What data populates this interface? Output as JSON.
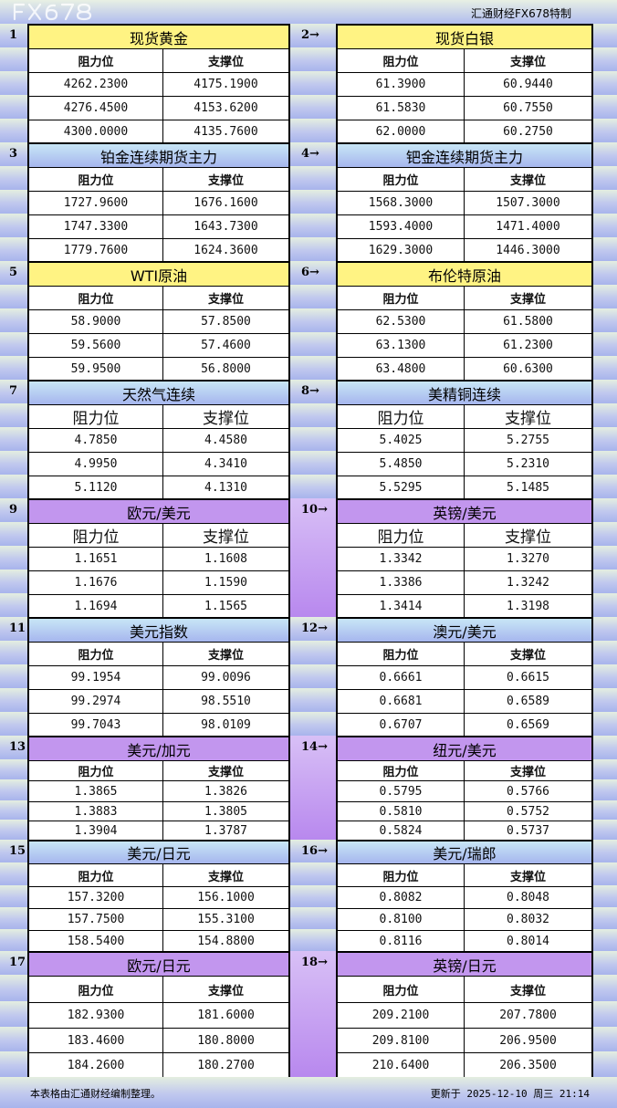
{
  "brand": "汇通财经FX678特制",
  "col_headers": {
    "resistance": "阻力位",
    "support": "支撑位"
  },
  "instruments": [
    {
      "num": "1",
      "name": "现货黄金",
      "rows": [
        [
          "4262.2300",
          "4175.1900"
        ],
        [
          "4276.4500",
          "4153.6200"
        ],
        [
          "4300.0000",
          "4135.7600"
        ]
      ]
    },
    {
      "num": "2→",
      "name": "现货白银",
      "rows": [
        [
          "61.3900",
          "60.9440"
        ],
        [
          "61.5830",
          "60.7550"
        ],
        [
          "62.0000",
          "60.2750"
        ]
      ]
    },
    {
      "num": "3",
      "name": "铂金连续期货主力",
      "rows": [
        [
          "1727.9600",
          "1676.1600"
        ],
        [
          "1747.3300",
          "1643.7300"
        ],
        [
          "1779.7600",
          "1624.3600"
        ]
      ]
    },
    {
      "num": "4→",
      "name": "钯金连续期货主力",
      "rows": [
        [
          "1568.3000",
          "1507.3000"
        ],
        [
          "1593.4000",
          "1471.4000"
        ],
        [
          "1629.3000",
          "1446.3000"
        ]
      ]
    },
    {
      "num": "5",
      "name": "WTI原油",
      "rows": [
        [
          "58.9000",
          "57.8500"
        ],
        [
          "59.5600",
          "57.4600"
        ],
        [
          "59.9500",
          "56.8000"
        ]
      ]
    },
    {
      "num": "6→",
      "name": "布伦特原油",
      "rows": [
        [
          "62.5300",
          "61.5800"
        ],
        [
          "63.1300",
          "61.2300"
        ],
        [
          "63.4800",
          "60.6300"
        ]
      ]
    },
    {
      "num": "7",
      "name": "天然气连续",
      "rows": [
        [
          "4.7850",
          "4.4580"
        ],
        [
          "4.9950",
          "4.3410"
        ],
        [
          "5.1120",
          "4.1310"
        ]
      ]
    },
    {
      "num": "8→",
      "name": "美精铜连续",
      "rows": [
        [
          "5.4025",
          "5.2755"
        ],
        [
          "5.4850",
          "5.2310"
        ],
        [
          "5.5295",
          "5.1485"
        ]
      ]
    },
    {
      "num": "9",
      "name": "欧元/美元",
      "rows": [
        [
          "1.1651",
          "1.1608"
        ],
        [
          "1.1676",
          "1.1590"
        ],
        [
          "1.1694",
          "1.1565"
        ]
      ]
    },
    {
      "num": "10→",
      "name": "英镑/美元",
      "rows": [
        [
          "1.3342",
          "1.3270"
        ],
        [
          "1.3386",
          "1.3242"
        ],
        [
          "1.3414",
          "1.3198"
        ]
      ]
    },
    {
      "num": "11",
      "name": "美元指数",
      "rows": [
        [
          "99.1954",
          "99.0096"
        ],
        [
          "99.2974",
          "98.5510"
        ],
        [
          "99.7043",
          "98.0109"
        ]
      ]
    },
    {
      "num": "12→",
      "name": "澳元/美元",
      "rows": [
        [
          "0.6661",
          "0.6615"
        ],
        [
          "0.6681",
          "0.6589"
        ],
        [
          "0.6707",
          "0.6569"
        ]
      ]
    },
    {
      "num": "13",
      "name": "美元/加元",
      "rows": [
        [
          "1.3865",
          "1.3826"
        ],
        [
          "1.3883",
          "1.3805"
        ],
        [
          "1.3904",
          "1.3787"
        ]
      ]
    },
    {
      "num": "14→",
      "name": "纽元/美元",
      "rows": [
        [
          "0.5795",
          "0.5766"
        ],
        [
          "0.5810",
          "0.5752"
        ],
        [
          "0.5824",
          "0.5737"
        ]
      ]
    },
    {
      "num": "15",
      "name": "美元/日元",
      "rows": [
        [
          "157.3200",
          "156.1000"
        ],
        [
          "157.7500",
          "155.3100"
        ],
        [
          "158.5400",
          "154.8800"
        ]
      ]
    },
    {
      "num": "16→",
      "name": "美元/瑞郎",
      "rows": [
        [
          "0.8082",
          "0.8048"
        ],
        [
          "0.8100",
          "0.8032"
        ],
        [
          "0.8116",
          "0.8014"
        ]
      ]
    },
    {
      "num": "17",
      "name": "欧元/日元",
      "rows": [
        [
          "182.9300",
          "181.6000"
        ],
        [
          "183.4600",
          "180.8000"
        ],
        [
          "184.2600",
          "180.2700"
        ]
      ]
    },
    {
      "num": "18→",
      "name": "英镑/日元",
      "rows": [
        [
          "209.2100",
          "207.7800"
        ],
        [
          "209.8100",
          "206.9500"
        ],
        [
          "210.6400",
          "206.3500"
        ]
      ]
    }
  ],
  "header_colors": {
    "yellow": "#fff383",
    "blue": "#b4c8f0",
    "purple": "#c296ee"
  },
  "footer": {
    "note": "本表格由汇通财经编制整理。",
    "updated": "更新于 2025-12-10 周三 21:14"
  },
  "watermark": "FX678"
}
